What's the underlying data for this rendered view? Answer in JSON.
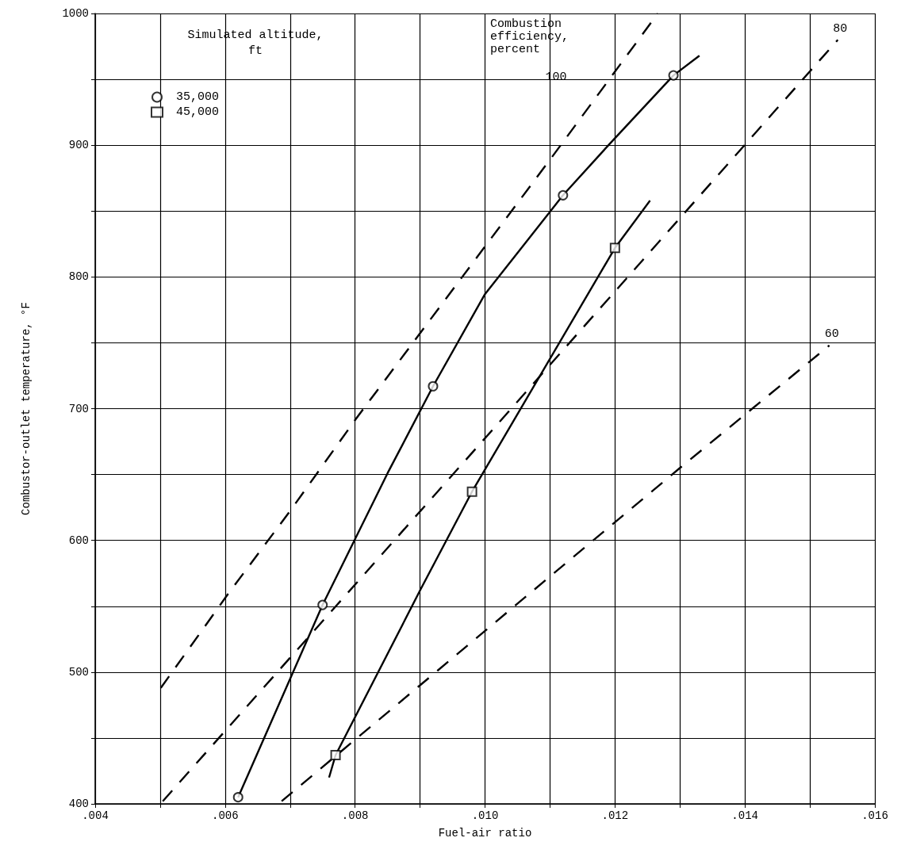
{
  "chart_data": {
    "type": "scatter",
    "xlabel": "Fuel-air ratio",
    "ylabel": "Combustor-outlet temperature, °F",
    "legend_title": "Simulated altitude, ft",
    "legend": "top left",
    "grid": true,
    "xlim": [
      0.004,
      0.016
    ],
    "ylim": [
      400,
      1000
    ],
    "xticks": [
      {
        "value": 0.004,
        "label": ".004"
      },
      {
        "value": 0.005,
        "label": null
      },
      {
        "value": 0.006,
        "label": ".006"
      },
      {
        "value": 0.007,
        "label": null
      },
      {
        "value": 0.008,
        "label": ".008"
      },
      {
        "value": 0.009,
        "label": null
      },
      {
        "value": 0.01,
        "label": ".010"
      },
      {
        "value": 0.011,
        "label": null
      },
      {
        "value": 0.012,
        "label": ".012"
      },
      {
        "value": 0.013,
        "label": null
      },
      {
        "value": 0.014,
        "label": ".014"
      },
      {
        "value": 0.015,
        "label": null
      },
      {
        "value": 0.016,
        "label": ".016"
      }
    ],
    "yticks": [
      400,
      {
        "value": 450,
        "label": null
      },
      500,
      {
        "value": 550,
        "label": null
      },
      600,
      {
        "value": 650,
        "label": null
      },
      700,
      {
        "value": 750,
        "label": null
      },
      800,
      {
        "value": 850,
        "label": null
      },
      900,
      {
        "value": 950,
        "label": null
      },
      1000
    ],
    "annotations": [
      "Combustion efficiency, percent"
    ],
    "series": [
      {
        "name": "35,000",
        "type": "scatter",
        "marker": "circle",
        "color": "#000000",
        "x": [
          0.0062,
          0.0075,
          0.0092,
          0.0112,
          0.0129
        ],
        "values": [
          405,
          551,
          717,
          862,
          953
        ]
      },
      {
        "name": "45,000",
        "type": "scatter",
        "marker": "square",
        "color": "#000000",
        "x": [
          0.0077,
          0.0098,
          0.012
        ],
        "values": [
          437,
          637,
          822
        ]
      },
      {
        "type": "line",
        "line_style": "solid",
        "color": "#000000",
        "x": [
          0.0062,
          0.0075,
          0.0085,
          0.0092,
          0.01,
          0.0112,
          0.0119,
          0.0129,
          0.0133
        ],
        "values": [
          405,
          551,
          651,
          717,
          787,
          862,
          900,
          953,
          968
        ]
      },
      {
        "type": "line",
        "line_style": "solid",
        "color": "#000000",
        "x": [
          0.0076,
          0.0077,
          0.009,
          0.0098,
          0.012,
          0.01254
        ],
        "values": [
          420,
          437,
          562,
          637,
          822,
          858
        ]
      },
      {
        "name": "100",
        "type": "line",
        "line_style": "dashed",
        "color": "#000000",
        "x": [
          0.00501,
          0.00604,
          0.00701,
          0.00801,
          0.011,
          0.01266
        ],
        "values": [
          488,
          559,
          623,
          692,
          889,
          1000
        ]
      },
      {
        "name": "80",
        "type": "line",
        "line_style": "dashed",
        "color": "#000000",
        "x": [
          0.00504,
          0.0099,
          0.01543
        ],
        "values": [
          402,
          672,
          980
        ]
      },
      {
        "name": "60",
        "type": "line",
        "line_style": "dashed",
        "color": "#000000",
        "x": [
          0.00687,
          0.0105,
          0.013,
          0.0153
        ],
        "values": [
          402,
          552,
          655,
          748
        ]
      }
    ]
  }
}
